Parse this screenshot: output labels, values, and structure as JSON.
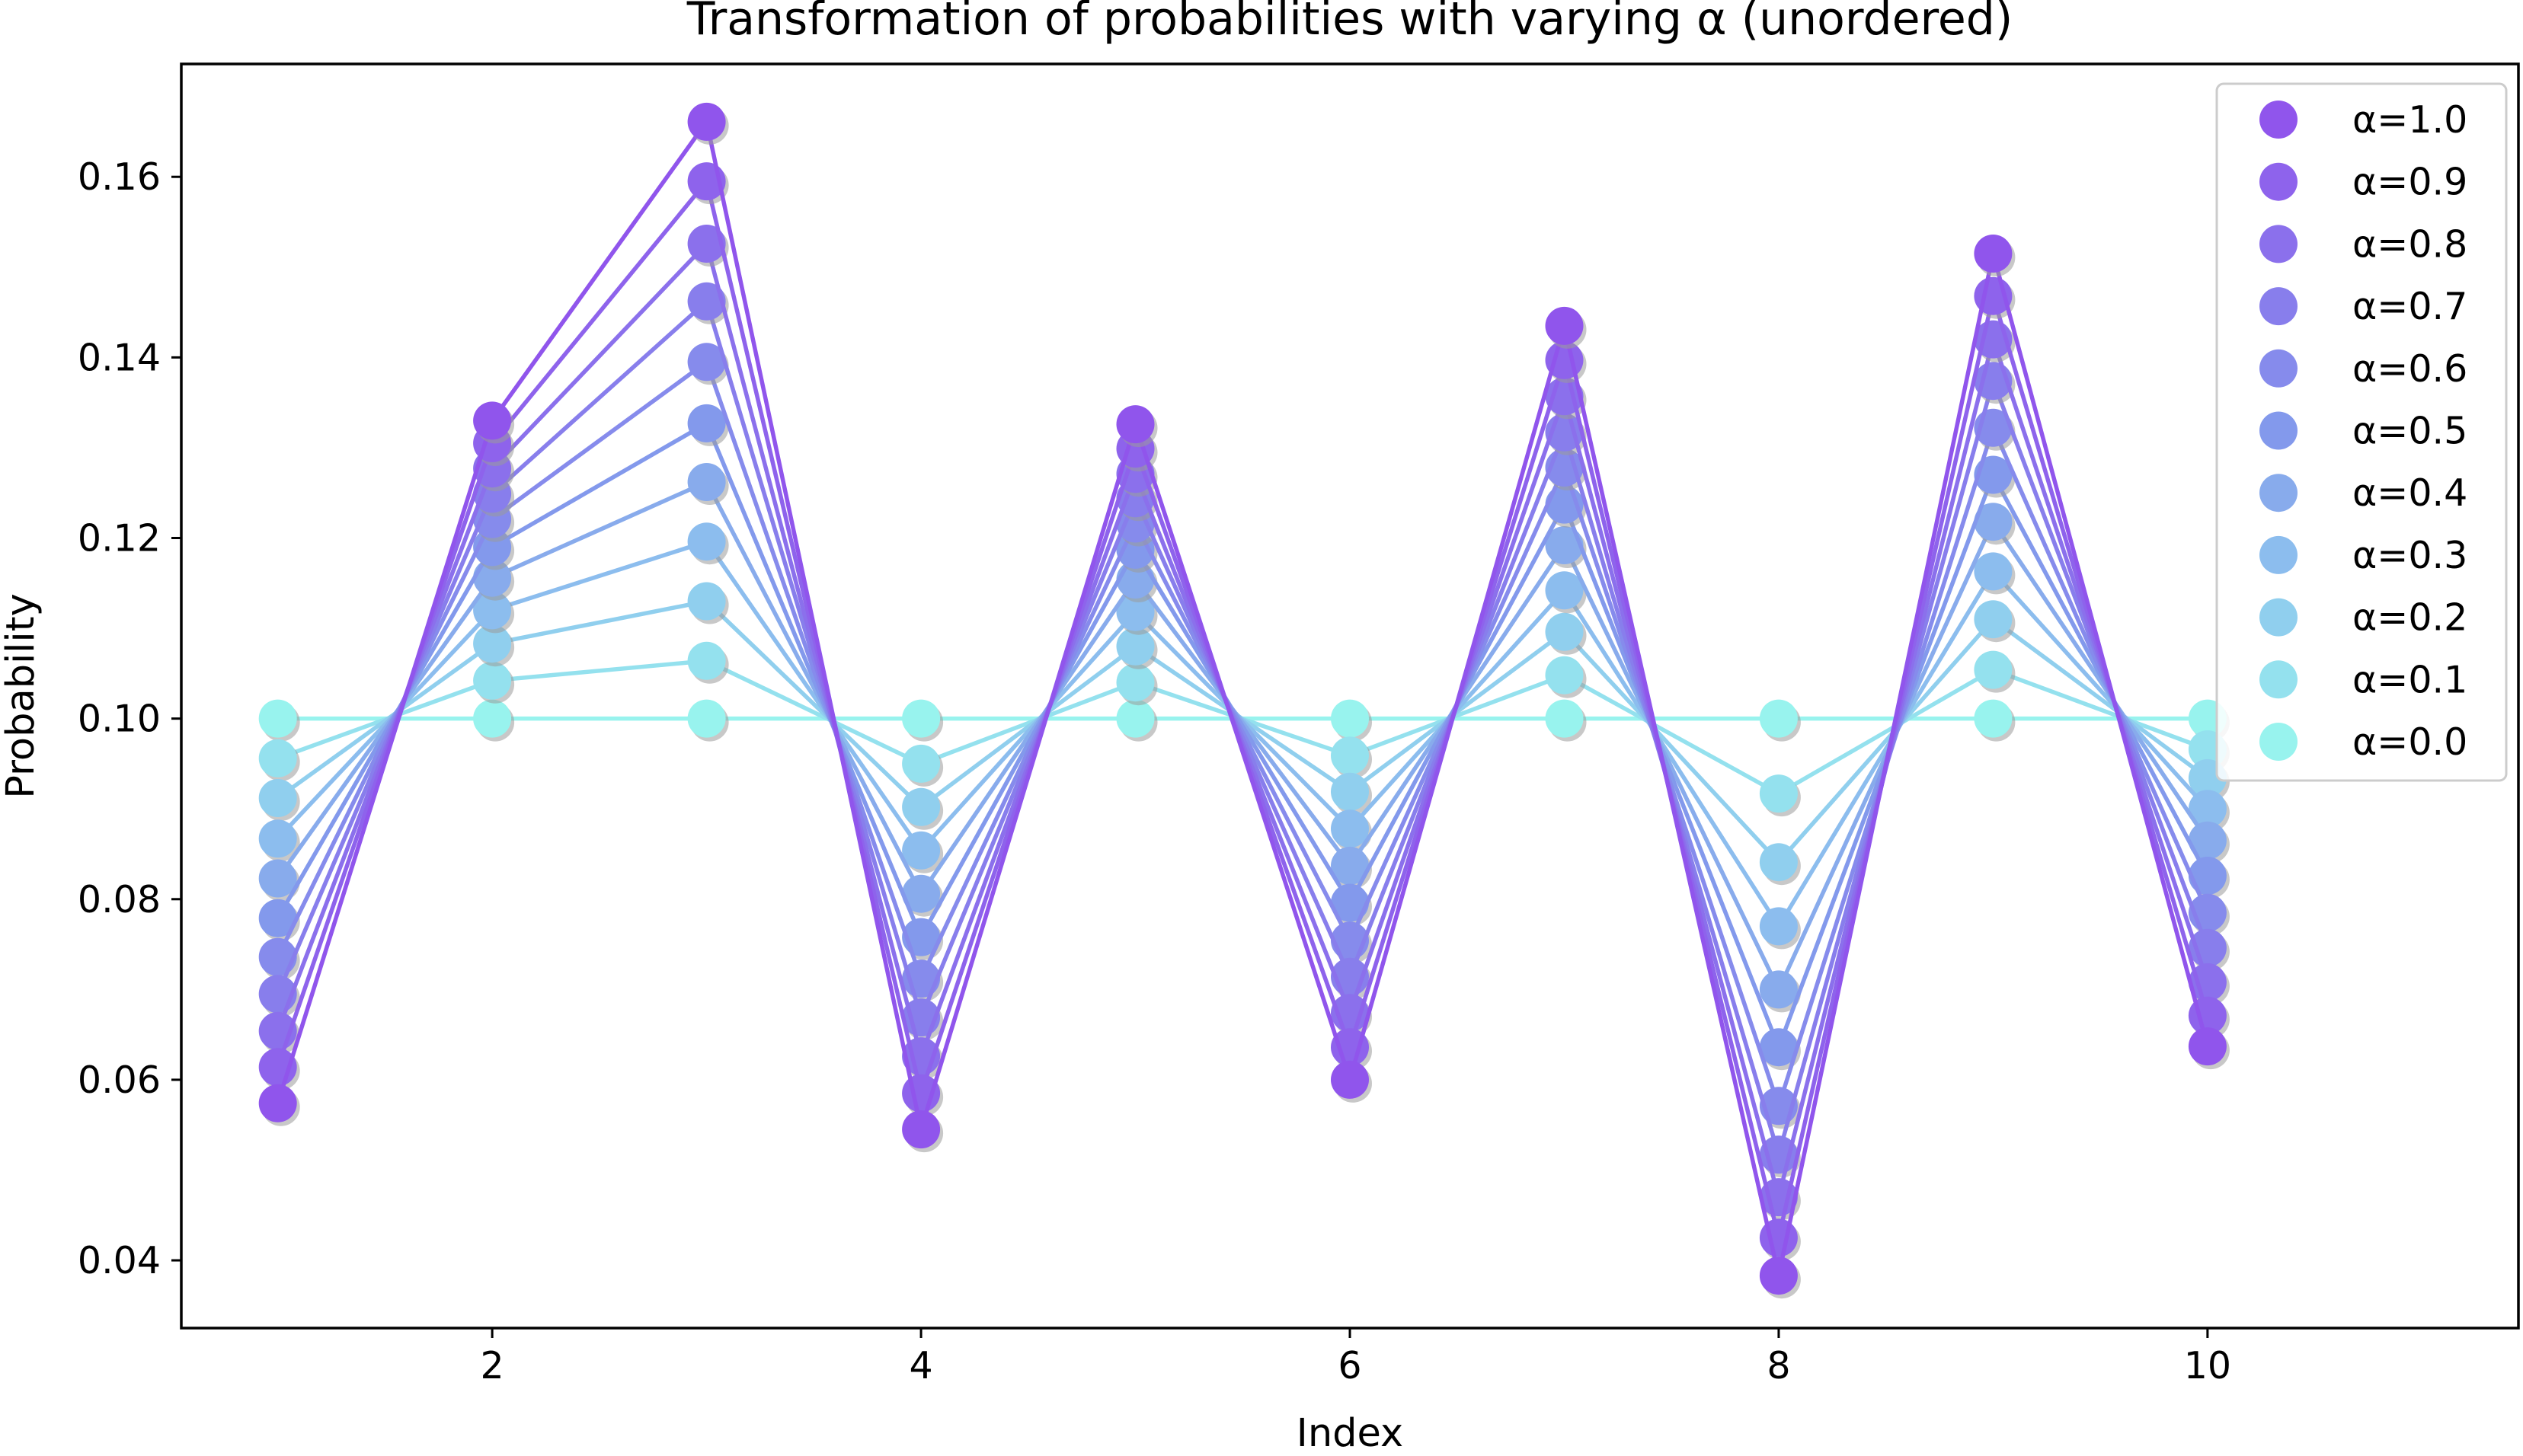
{
  "chart_data": {
    "type": "line",
    "title": "Transformation of probabilities with varying α (unordered)",
    "xlabel": "Index",
    "ylabel": "Probability",
    "xlim": [
      0.55,
      11.45
    ],
    "ylim": [
      0.0325,
      0.1725
    ],
    "xticks": [
      2,
      4,
      6,
      8,
      10
    ],
    "xtick_labels": [
      "2",
      "4",
      "6",
      "8",
      "10"
    ],
    "yticks": [
      0.04,
      0.06,
      0.08,
      0.1,
      0.12,
      0.14,
      0.16
    ],
    "ytick_labels": [
      "0.04",
      "0.06",
      "0.08",
      "0.10",
      "0.12",
      "0.14",
      "0.16"
    ],
    "grid": false,
    "legend_position": "top-right",
    "markers": "circle",
    "x": [
      1,
      2,
      3,
      4,
      5,
      6,
      7,
      8,
      9,
      10
    ],
    "series": [
      {
        "name": "α=1.0",
        "color": "#9055EC",
        "values": [
          0.0574,
          0.133,
          0.1661,
          0.0545,
          0.1326,
          0.06,
          0.1435,
          0.0383,
          0.1515,
          0.0637
        ]
      },
      {
        "name": "α=0.9",
        "color": "#8E63EC",
        "values": [
          0.0614,
          0.1305,
          0.1595,
          0.0585,
          0.1299,
          0.0636,
          0.1397,
          0.0425,
          0.1468,
          0.0671
        ]
      },
      {
        "name": "α=0.8",
        "color": "#8B70EC",
        "values": [
          0.0654,
          0.1277,
          0.1526,
          0.0626,
          0.1271,
          0.0674,
          0.1357,
          0.047,
          0.142,
          0.0708
        ]
      },
      {
        "name": "α=0.7",
        "color": "#887EEC",
        "values": [
          0.0695,
          0.1249,
          0.1462,
          0.0669,
          0.1244,
          0.0714,
          0.1317,
          0.0517,
          0.1374,
          0.0746
        ]
      },
      {
        "name": "α=0.6",
        "color": "#868BEC",
        "values": [
          0.0736,
          0.1221,
          0.1395,
          0.0712,
          0.1216,
          0.0754,
          0.1278,
          0.0571,
          0.1322,
          0.0785
        ]
      },
      {
        "name": "α=0.5",
        "color": "#8399EC",
        "values": [
          0.0779,
          0.119,
          0.1327,
          0.0758,
          0.1187,
          0.0796,
          0.1237,
          0.0636,
          0.127,
          0.0826
        ]
      },
      {
        "name": "α=0.4",
        "color": "#88ABEC",
        "values": [
          0.0823,
          0.1156,
          0.1262,
          0.0806,
          0.1154,
          0.0837,
          0.1192,
          0.07,
          0.1218,
          0.0865
        ]
      },
      {
        "name": "α=0.3",
        "color": "#8CBDEE",
        "values": [
          0.0867,
          0.112,
          0.1196,
          0.0854,
          0.1118,
          0.0878,
          0.1142,
          0.077,
          0.1163,
          0.09
        ]
      },
      {
        "name": "α=0.2",
        "color": "#90CFEE",
        "values": [
          0.0912,
          0.1083,
          0.113,
          0.0902,
          0.108,
          0.0919,
          0.1096,
          0.0841,
          0.111,
          0.0934
        ]
      },
      {
        "name": "α=0.1",
        "color": "#94E1EE",
        "values": [
          0.0956,
          0.1042,
          0.1064,
          0.095,
          0.104,
          0.0959,
          0.1048,
          0.0917,
          0.1054,
          0.0966
        ]
      },
      {
        "name": "α=0.0",
        "color": "#98F3EE",
        "values": [
          0.1,
          0.1,
          0.1,
          0.1,
          0.1,
          0.1,
          0.1,
          0.1,
          0.1,
          0.1
        ]
      }
    ]
  }
}
